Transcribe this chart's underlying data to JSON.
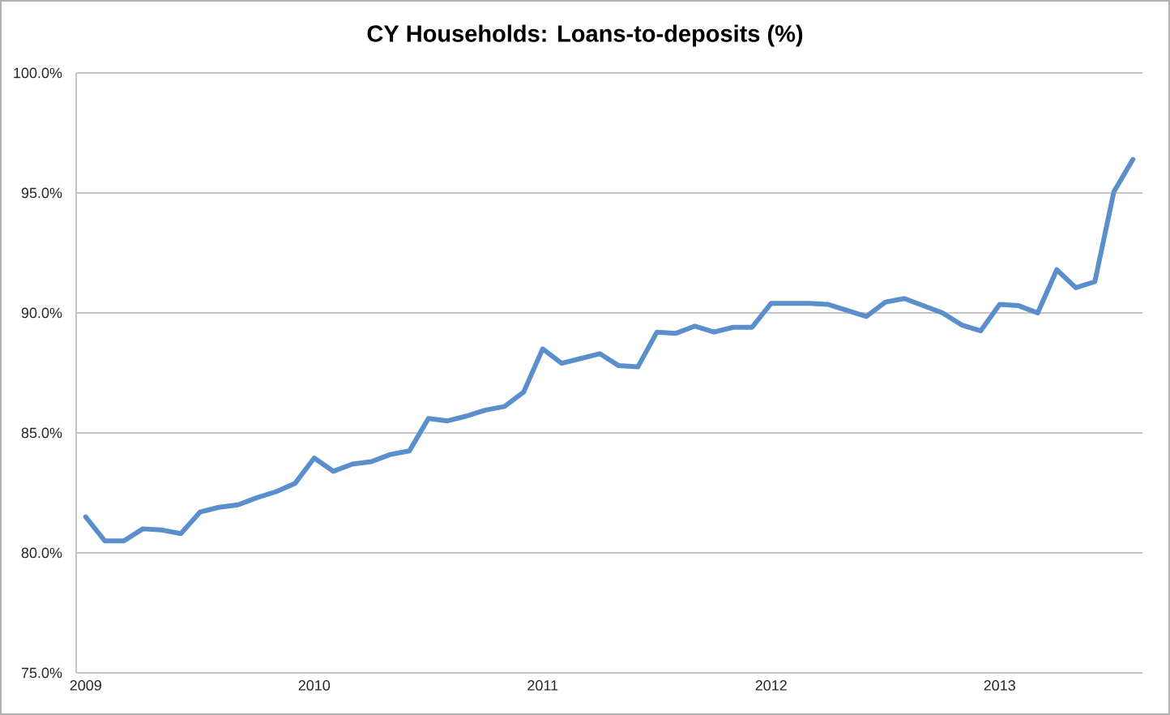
{
  "chart_data": {
    "type": "line",
    "title": "CY Households: Loans-to-deposits (%)",
    "categories": [
      "2009",
      null,
      null,
      null,
      null,
      null,
      null,
      null,
      null,
      null,
      null,
      null,
      "2010",
      null,
      null,
      null,
      null,
      null,
      null,
      null,
      null,
      null,
      null,
      null,
      "2011",
      null,
      null,
      null,
      null,
      null,
      null,
      null,
      null,
      null,
      null,
      null,
      "2012",
      null,
      null,
      null,
      null,
      null,
      null,
      null,
      null,
      null,
      null,
      null,
      "2013",
      null,
      null,
      null,
      null,
      null,
      null,
      null
    ],
    "values": [
      81.5,
      80.5,
      80.5,
      81.0,
      80.95,
      80.8,
      81.7,
      81.9,
      82.0,
      82.3,
      82.55,
      82.9,
      83.95,
      83.4,
      83.7,
      83.8,
      84.1,
      84.25,
      85.6,
      85.5,
      85.7,
      85.95,
      86.1,
      86.7,
      88.5,
      87.9,
      88.1,
      88.3,
      87.8,
      87.75,
      89.2,
      89.15,
      89.45,
      89.2,
      89.4,
      89.4,
      90.4,
      90.4,
      90.4,
      90.35,
      90.1,
      89.85,
      90.45,
      90.6,
      90.3,
      90.0,
      89.5,
      89.25,
      90.35,
      90.3,
      90.0,
      91.8,
      91.05,
      91.3,
      95.05,
      96.4
    ],
    "color": "#5b8fcb",
    "ylim": [
      75,
      100
    ],
    "yticks": [
      {
        "value": 75,
        "label": "75.0%"
      },
      {
        "value": 80,
        "label": "80.0%"
      },
      {
        "value": 85,
        "label": "85.0%"
      },
      {
        "value": 90,
        "label": "90.0%"
      },
      {
        "value": 95,
        "label": "95.0%"
      },
      {
        "value": 100,
        "label": "100.0%"
      }
    ],
    "grid": "y"
  }
}
